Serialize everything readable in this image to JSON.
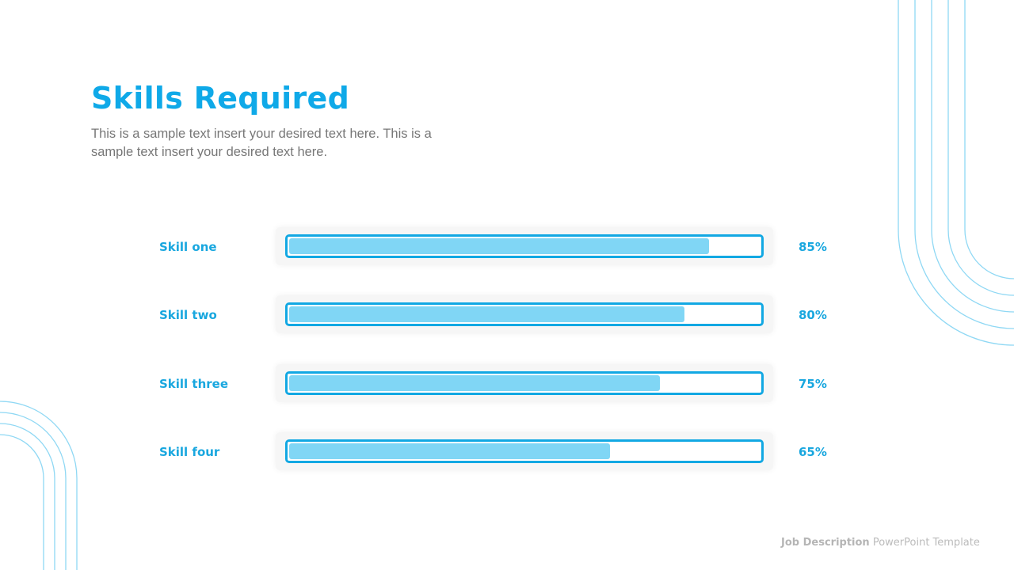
{
  "title": "Skills Required",
  "subtitle": "This is a sample text insert your desired text here. This is a sample text insert your desired text here.",
  "footer": {
    "bold": "Job Description",
    "rest": "PowerPoint Template"
  },
  "colors": {
    "accent": "#12a8e3",
    "fill": "#80d6f5",
    "deco": "#8fd8f4"
  },
  "chart_data": {
    "type": "bar",
    "orientation": "horizontal",
    "categories": [
      "Skill one",
      "Skill two",
      "Skill three",
      "Skill four"
    ],
    "values": [
      85,
      80,
      75,
      65
    ],
    "value_labels": [
      "85%",
      "80%",
      "75%",
      "65%"
    ],
    "xlim": [
      0,
      100
    ]
  }
}
